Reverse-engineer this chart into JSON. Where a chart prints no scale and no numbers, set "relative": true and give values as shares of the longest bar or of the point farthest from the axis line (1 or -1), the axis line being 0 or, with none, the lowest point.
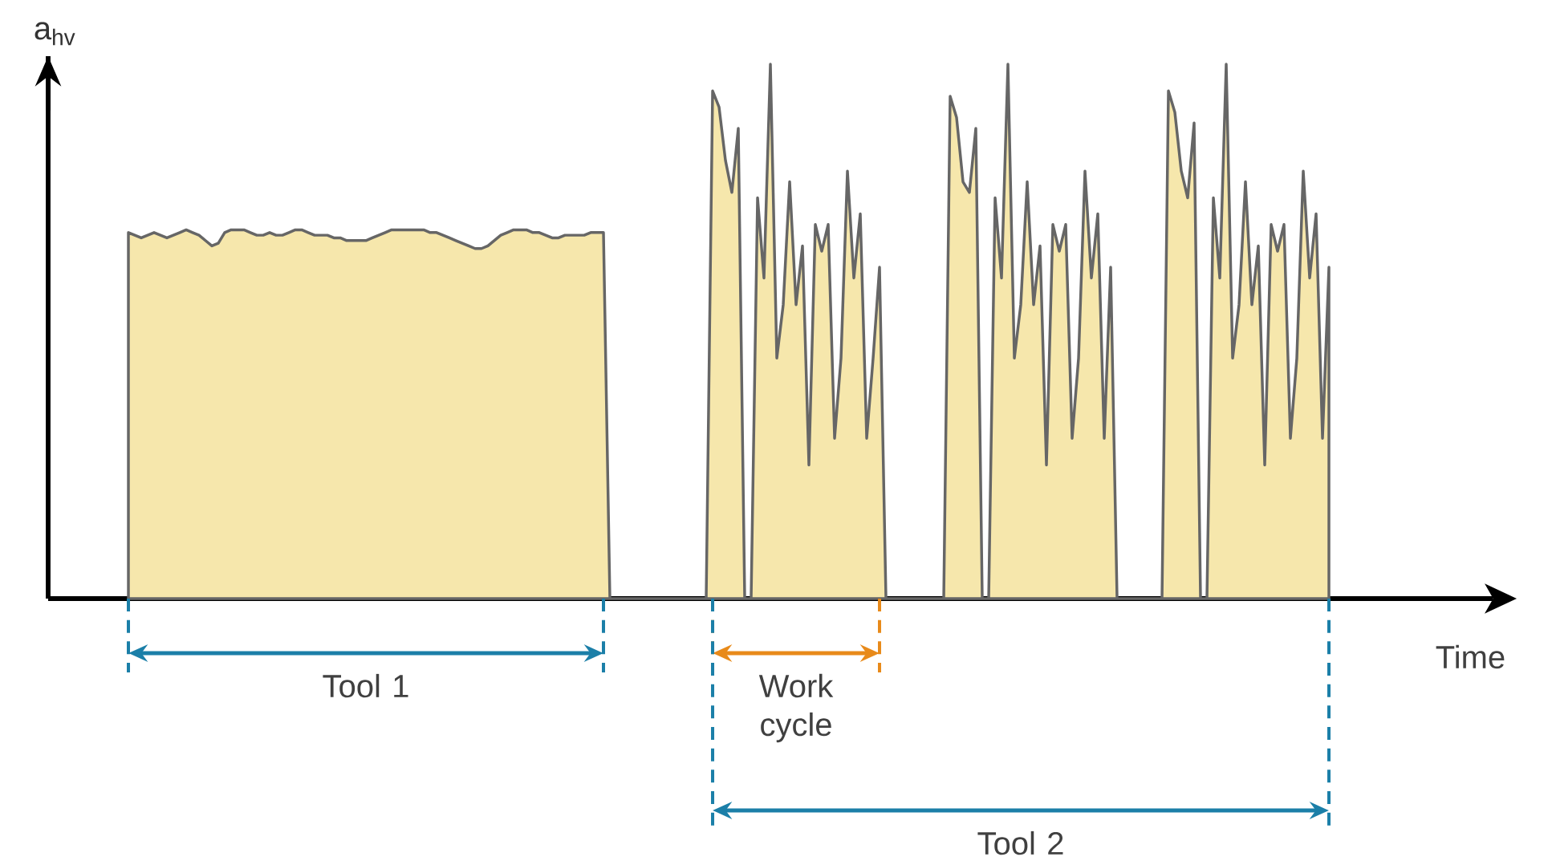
{
  "chart_data": {
    "type": "area",
    "relative": true,
    "xlabel": "Time",
    "ylabel": "a$_{hv}$",
    "color": "#f6e7ac",
    "categories": [
      null,
      null,
      null,
      null,
      null,
      null,
      null,
      null,
      null,
      null,
      null,
      null,
      null,
      null,
      null,
      null,
      null,
      null,
      null,
      null,
      null,
      null,
      null,
      null,
      null,
      null,
      null,
      null,
      null,
      null,
      null,
      null,
      null,
      null,
      null,
      null,
      null,
      null,
      null,
      null,
      null,
      null,
      null,
      null,
      null,
      null,
      null,
      null,
      null,
      null,
      null,
      null,
      null,
      null,
      null,
      null,
      null,
      null,
      null,
      null,
      null,
      null,
      null,
      null,
      null,
      null,
      null,
      null,
      null,
      null,
      null,
      null,
      null,
      null,
      null,
      null,
      null,
      null,
      null,
      null,
      null,
      null,
      null,
      null,
      null,
      null,
      null,
      null,
      null,
      null,
      null,
      null,
      null,
      null,
      null,
      null,
      null,
      null,
      null,
      null,
      null,
      null,
      null,
      null,
      null,
      null,
      null,
      null,
      null,
      null,
      null,
      null,
      null,
      null,
      null,
      null,
      null,
      null,
      null,
      null,
      null,
      null,
      null,
      null,
      null,
      null,
      null,
      null,
      null,
      null,
      null,
      null,
      null,
      null,
      null,
      null,
      null,
      null,
      null,
      null,
      null,
      null,
      null,
      null,
      null,
      null,
      null,
      null,
      null,
      null,
      null,
      null,
      null,
      null,
      null,
      null,
      null,
      null,
      null,
      null,
      null,
      null,
      null,
      null,
      null,
      null,
      null,
      null,
      null,
      null,
      null,
      null,
      null,
      null,
      null,
      null,
      null,
      null,
      null,
      null,
      null,
      null,
      null,
      null,
      null,
      null,
      null,
      null
    ],
    "values": [
      0.685,
      0.68,
      0.675,
      0.68,
      0.685,
      0.68,
      0.675,
      0.68,
      0.685,
      0.69,
      0.685,
      0.68,
      0.67,
      0.66,
      0.665,
      0.685,
      0.69,
      0.69,
      0.69,
      0.685,
      0.68,
      0.68,
      0.685,
      0.68,
      0.68,
      0.685,
      0.69,
      0.69,
      0.685,
      0.68,
      0.68,
      0.68,
      0.675,
      0.675,
      0.67,
      0.67,
      0.67,
      0.67,
      0.675,
      0.68,
      0.685,
      0.69,
      0.69,
      0.69,
      0.69,
      0.69,
      0.69,
      0.685,
      0.685,
      0.68,
      0.675,
      0.67,
      0.665,
      0.66,
      0.655,
      0.655,
      0.66,
      0.67,
      0.68,
      0.685,
      0.69,
      0.69,
      0.69,
      0.685,
      0.685,
      0.68,
      0.675,
      0.675,
      0.68,
      0.68,
      0.68,
      0.68,
      0.685,
      0.685,
      0.685,
      0,
      0,
      0,
      0,
      0,
      0,
      0,
      0,
      0,
      0,
      0,
      0,
      0,
      0,
      0,
      0,
      0.95,
      0.92,
      0.82,
      0.76,
      0.88,
      0,
      0,
      0.75,
      0.6,
      1,
      0.45,
      0.55,
      0.78,
      0.55,
      0.66,
      0.25,
      0.7,
      0.65,
      0.7,
      0.3,
      0.45,
      0.8,
      0.6,
      0.72,
      0.3,
      0.45,
      0.62,
      0,
      0,
      0,
      0,
      0,
      0,
      0,
      0,
      0,
      0,
      0.94,
      0.9,
      0.78,
      0.76,
      0.88,
      0,
      0,
      0.75,
      0.6,
      1,
      0.45,
      0.55,
      0.78,
      0.55,
      0.66,
      0.25,
      0.7,
      0.65,
      0.7,
      0.3,
      0.45,
      0.8,
      0.6,
      0.72,
      0.3,
      0.62,
      0,
      0,
      0,
      0,
      0,
      0,
      0,
      0,
      0.95,
      0.91,
      0.8,
      0.75,
      0.89,
      0,
      0,
      0.75,
      0.6,
      1,
      0.45,
      0.55,
      0.78,
      0.55,
      0.66,
      0.25,
      0.7,
      0.65,
      0.7,
      0.3,
      0.45,
      0.8,
      0.6,
      0.72,
      0.3,
      0.62
    ],
    "annotations": [
      "Tool 1",
      "Work cycle",
      "Tool 2"
    ]
  }
}
